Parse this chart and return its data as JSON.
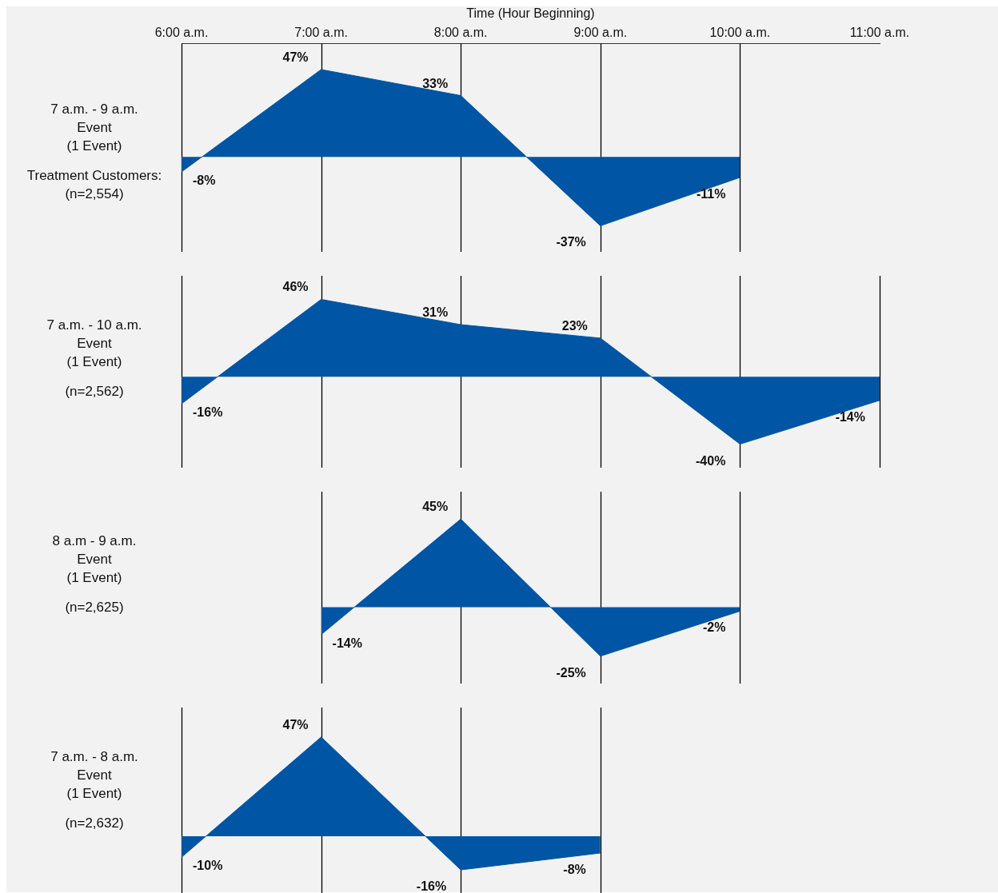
{
  "chart_data": [
    {
      "type": "area",
      "title": "7 a.m. - 9 a.m.\nEvent\n(1 Event)",
      "subtitle": "(n=2,554)",
      "annotations": [
        "Treatment Customers:"
      ],
      "xlabel": "Time (Hour Beginning)",
      "xlim": [
        6,
        11
      ],
      "xticks": [
        {
          "value": 6,
          "label": "6:00 a.m."
        },
        {
          "value": 7,
          "label": "7:00 a.m."
        },
        {
          "value": 8,
          "label": "8:00 a.m."
        },
        {
          "value": 9,
          "label": "9:00 a.m."
        },
        {
          "value": 10,
          "label": "10:00 a.m."
        },
        {
          "value": 11,
          "label": "11:00 a.m."
        }
      ],
      "grid": "x",
      "x": [
        6,
        7,
        8,
        9,
        10
      ],
      "series": [
        {
          "color": "#0055a4",
          "values": [
            -8,
            47,
            33,
            -37,
            -11
          ],
          "value_labels": [
            "-8%",
            "47%",
            "33%",
            "-37%",
            "-11%"
          ]
        }
      ]
    },
    {
      "type": "area",
      "title": "7 a.m. - 10 a.m.\nEvent\n(1 Event)",
      "subtitle": "(n=2,562)",
      "categories": [
        null,
        null,
        null,
        null,
        null,
        null
      ],
      "grid": "x",
      "series": [
        {
          "color": "#0055a4",
          "values": [
            -16,
            46,
            31,
            23,
            -40,
            -14
          ],
          "value_labels": [
            "-16%",
            "46%",
            "31%",
            "23%",
            "-40%",
            "-14%"
          ]
        }
      ]
    },
    {
      "type": "area",
      "title": "8 a.m - 9 a.m.\nEvent\n(1 Event)",
      "subtitle": "(n=2,625)",
      "categories": [
        null,
        null,
        null,
        null,
        null,
        null
      ],
      "grid": "x",
      "series": [
        {
          "color": "#0055a4",
          "values": [
            null,
            -14,
            45,
            -25,
            -2,
            null
          ],
          "value_labels": [
            null,
            "-14%",
            "45%",
            "-25%",
            "-2%",
            null
          ]
        }
      ]
    },
    {
      "type": "area",
      "title": "7 a.m. - 8 a.m.\nEvent\n(1 Event)",
      "subtitle": "(n=2,632)",
      "categories": [
        null,
        null,
        null,
        null,
        null,
        null
      ],
      "grid": "x",
      "series": [
        {
          "color": "#0055a4",
          "values": [
            -10,
            47,
            -16,
            -8,
            null,
            null
          ],
          "value_labels": [
            "-10%",
            "47%",
            "-16%",
            "-8%",
            null,
            null
          ]
        }
      ]
    }
  ]
}
